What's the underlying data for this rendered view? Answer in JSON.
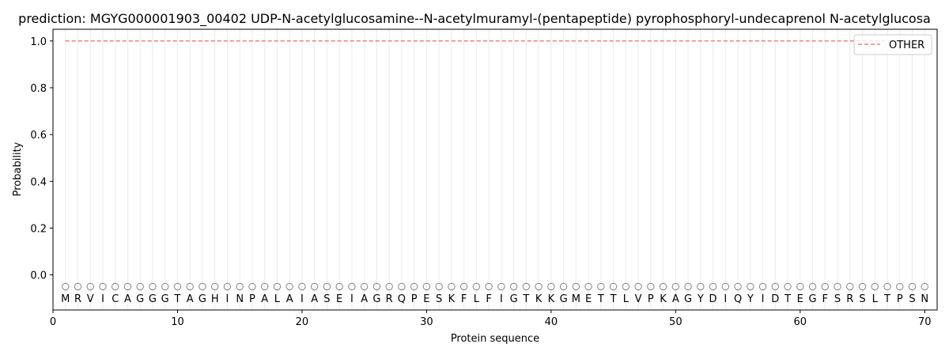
{
  "chart_data": {
    "type": "line",
    "title": "prediction: MGYG000001903_00402 UDP-N-acetylglucosamine--N-acetylmuramyl-(pentapeptide) pyrophosphoryl-undecaprenol N-acetylglucosa",
    "xlabel": "Protein sequence",
    "ylabel": "Probability",
    "xlim": [
      0,
      71
    ],
    "ylim": [
      -0.15,
      1.05
    ],
    "xticks": [
      0,
      10,
      20,
      30,
      40,
      50,
      60,
      70
    ],
    "yticks": [
      0.0,
      0.2,
      0.4,
      0.6,
      0.8,
      1.0
    ],
    "ytick_labels": [
      "0.0",
      "0.2",
      "0.4",
      "0.6",
      "0.8",
      "1.0"
    ],
    "grid": "vertical lines at each residue",
    "legend_placement": "top-right",
    "sequence": [
      "M",
      "R",
      "V",
      "I",
      "C",
      "A",
      "G",
      "G",
      "G",
      "T",
      "A",
      "G",
      "H",
      "I",
      "N",
      "P",
      "A",
      "L",
      "A",
      "I",
      "A",
      "S",
      "E",
      "I",
      "A",
      "G",
      "R",
      "Q",
      "P",
      "E",
      "S",
      "K",
      "F",
      "L",
      "F",
      "I",
      "G",
      "T",
      "K",
      "K",
      "G",
      "M",
      "E",
      "T",
      "T",
      "L",
      "V",
      "P",
      "K",
      "A",
      "G",
      "Y",
      "D",
      "I",
      "Q",
      "Y",
      "I",
      "D",
      "T",
      "E",
      "G",
      "F",
      "S",
      "R",
      "S",
      "L",
      "T",
      "P",
      "S",
      "N"
    ],
    "marker_y": -0.05,
    "letter_y": -0.1,
    "series": [
      {
        "name": "OTHER",
        "color": "#f08080",
        "style": "dashed",
        "x_start": 1,
        "x_end": 70,
        "value": 1.0
      }
    ]
  }
}
